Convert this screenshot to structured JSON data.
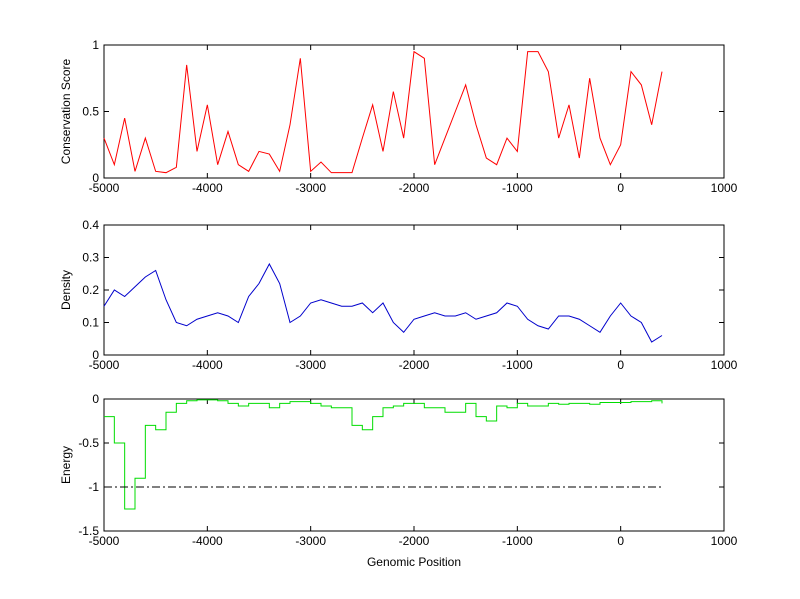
{
  "chart_data": [
    {
      "type": "line",
      "ylabel": "Conservation Score",
      "x": [
        -5000,
        -4900,
        -4800,
        -4700,
        -4600,
        -4500,
        -4400,
        -4300,
        -4200,
        -4100,
        -4000,
        -3900,
        -3800,
        -3700,
        -3600,
        -3500,
        -3400,
        -3300,
        -3200,
        -3100,
        -3000,
        -2900,
        -2800,
        -2700,
        -2600,
        -2500,
        -2400,
        -2300,
        -2200,
        -2100,
        -2000,
        -1900,
        -1800,
        -1700,
        -1600,
        -1500,
        -1400,
        -1300,
        -1200,
        -1100,
        -1000,
        -900,
        -800,
        -700,
        -600,
        -500,
        -400,
        -300,
        -200,
        -100,
        0,
        100,
        200,
        300,
        400
      ],
      "series": [
        {
          "color": "#ff0000",
          "values": [
            0.3,
            0.1,
            0.45,
            0.05,
            0.3,
            0.05,
            0.04,
            0.08,
            0.85,
            0.2,
            0.55,
            0.1,
            0.35,
            0.1,
            0.05,
            0.2,
            0.18,
            0.05,
            0.4,
            0.9,
            0.05,
            0.12,
            0.04,
            0.04,
            0.04,
            0.3,
            0.55,
            0.2,
            0.65,
            0.3,
            0.95,
            0.9,
            0.1,
            0.3,
            0.5,
            0.7,
            0.4,
            0.15,
            0.1,
            0.3,
            0.2,
            0.95,
            0.95,
            0.8,
            0.3,
            0.55,
            0.15,
            0.75,
            0.3,
            0.1,
            0.25,
            0.8,
            0.7,
            0.4,
            0.8
          ]
        }
      ],
      "xlim": [
        -5000,
        1000
      ],
      "xticks": [
        -5000,
        -4000,
        -3000,
        -2000,
        -1000,
        0,
        1000
      ],
      "ylim": [
        0,
        1
      ],
      "yticks": [
        0,
        0.5,
        1
      ]
    },
    {
      "type": "line",
      "ylabel": "Density",
      "x": [
        -5000,
        -4900,
        -4800,
        -4700,
        -4600,
        -4500,
        -4400,
        -4300,
        -4200,
        -4100,
        -4000,
        -3900,
        -3800,
        -3700,
        -3600,
        -3500,
        -3400,
        -3300,
        -3200,
        -3100,
        -3000,
        -2900,
        -2800,
        -2700,
        -2600,
        -2500,
        -2400,
        -2300,
        -2200,
        -2100,
        -2000,
        -1900,
        -1800,
        -1700,
        -1600,
        -1500,
        -1400,
        -1300,
        -1200,
        -1100,
        -1000,
        -900,
        -800,
        -700,
        -600,
        -500,
        -400,
        -300,
        -200,
        -100,
        0,
        100,
        200,
        300,
        400
      ],
      "series": [
        {
          "color": "#0000cc",
          "values": [
            0.15,
            0.2,
            0.18,
            0.21,
            0.24,
            0.26,
            0.17,
            0.1,
            0.09,
            0.11,
            0.12,
            0.13,
            0.12,
            0.1,
            0.18,
            0.22,
            0.28,
            0.22,
            0.1,
            0.12,
            0.16,
            0.17,
            0.16,
            0.15,
            0.15,
            0.16,
            0.13,
            0.16,
            0.1,
            0.07,
            0.11,
            0.12,
            0.13,
            0.12,
            0.12,
            0.13,
            0.11,
            0.12,
            0.13,
            0.16,
            0.15,
            0.11,
            0.09,
            0.08,
            0.12,
            0.12,
            0.11,
            0.09,
            0.07,
            0.12,
            0.16,
            0.12,
            0.1,
            0.04,
            0.06
          ]
        }
      ],
      "xlim": [
        -5000,
        1000
      ],
      "xticks": [
        -5000,
        -4000,
        -3000,
        -2000,
        -1000,
        0,
        1000
      ],
      "ylim": [
        0,
        0.4
      ],
      "yticks": [
        0,
        0.1,
        0.2,
        0.3,
        0.4
      ]
    },
    {
      "type": "line",
      "ylabel": "Energy",
      "xlabel": "Genomic Position",
      "x": [
        -5000,
        -4900,
        -4800,
        -4700,
        -4600,
        -4500,
        -4400,
        -4300,
        -4200,
        -4100,
        -4000,
        -3900,
        -3800,
        -3700,
        -3600,
        -3500,
        -3400,
        -3300,
        -3200,
        -3100,
        -3000,
        -2900,
        -2800,
        -2700,
        -2600,
        -2500,
        -2400,
        -2300,
        -2200,
        -2100,
        -2000,
        -1900,
        -1800,
        -1700,
        -1600,
        -1500,
        -1400,
        -1300,
        -1200,
        -1100,
        -1000,
        -900,
        -800,
        -700,
        -600,
        -500,
        -400,
        -300,
        -200,
        -100,
        0,
        100,
        200,
        300,
        400
      ],
      "series": [
        {
          "color": "#00dd00",
          "drawstyle": "steps",
          "values": [
            -0.2,
            -0.5,
            -1.25,
            -0.9,
            -0.3,
            -0.35,
            -0.15,
            -0.05,
            -0.02,
            -0.01,
            -0.01,
            -0.02,
            -0.05,
            -0.08,
            -0.05,
            -0.05,
            -0.1,
            -0.05,
            -0.03,
            -0.03,
            -0.05,
            -0.08,
            -0.1,
            -0.1,
            -0.3,
            -0.35,
            -0.2,
            -0.1,
            -0.08,
            -0.05,
            -0.05,
            -0.1,
            -0.1,
            -0.15,
            -0.15,
            -0.05,
            -0.2,
            -0.25,
            -0.08,
            -0.1,
            -0.05,
            -0.08,
            -0.08,
            -0.05,
            -0.06,
            -0.05,
            -0.05,
            -0.06,
            -0.04,
            -0.04,
            -0.04,
            -0.03,
            -0.03,
            -0.02,
            -0.05
          ]
        },
        {
          "color": "#000000",
          "dash": "dashdot",
          "x": [
            -5000,
            400
          ],
          "values": [
            -1,
            -1
          ]
        }
      ],
      "xlim": [
        -5000,
        1000
      ],
      "xticks": [
        -5000,
        -4000,
        -3000,
        -2000,
        -1000,
        0,
        1000
      ],
      "ylim": [
        -1.5,
        0
      ],
      "yticks": [
        -1.5,
        -1,
        -0.5,
        0
      ]
    }
  ]
}
